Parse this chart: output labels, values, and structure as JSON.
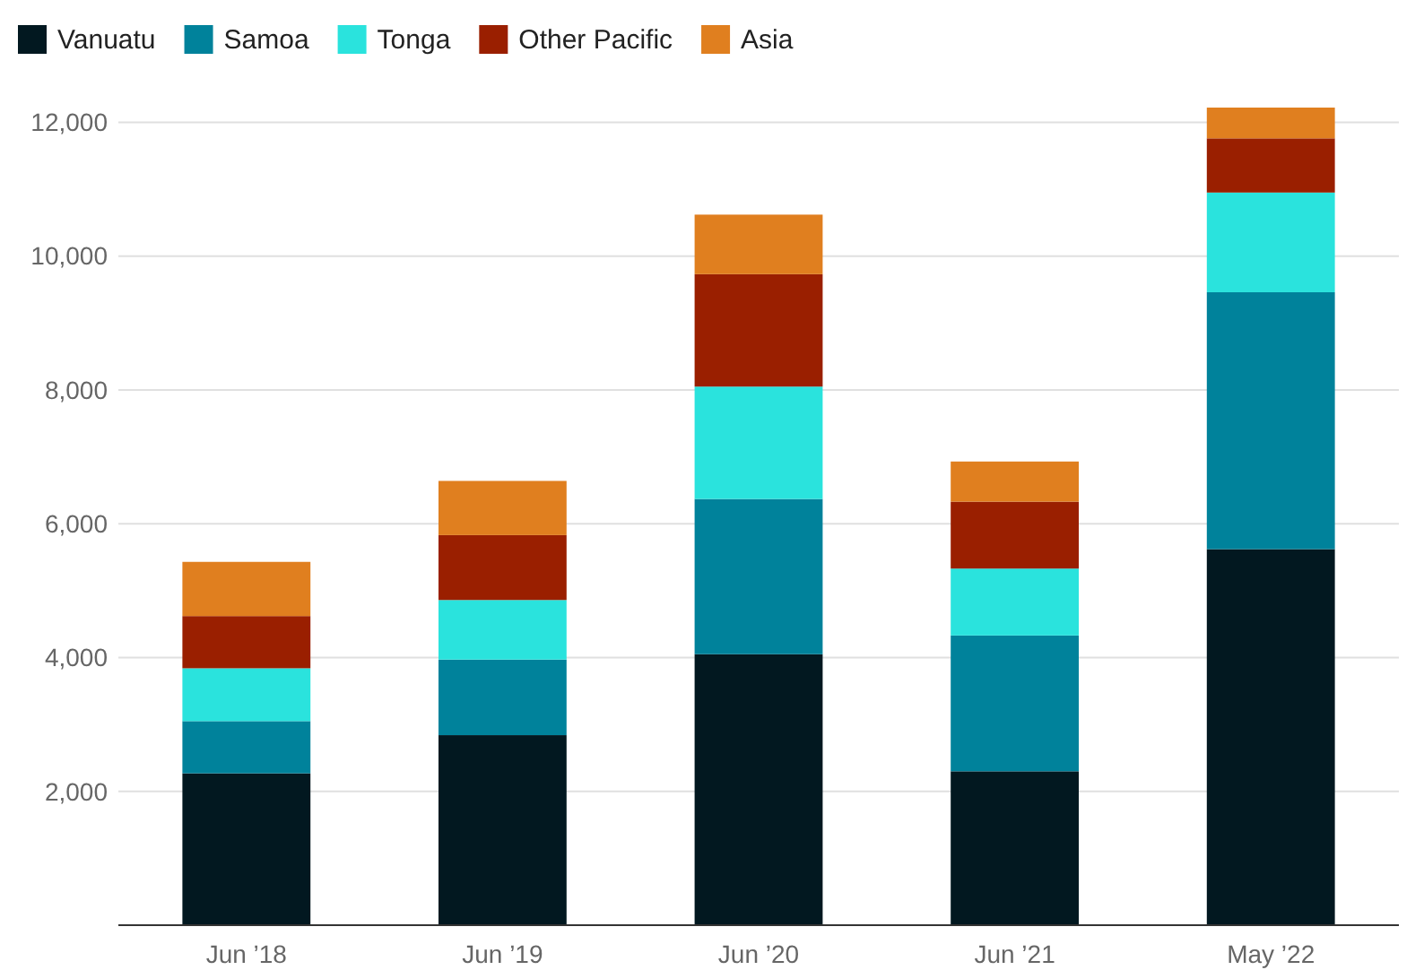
{
  "chart_data": {
    "type": "bar",
    "stacked": true,
    "categories": [
      "Jun ’18",
      "Jun ’19",
      "Jun ’20",
      "Jun ’21",
      "May ’22"
    ],
    "series": [
      {
        "name": "Vanuatu",
        "color": "#021820",
        "values": [
          2270,
          2840,
          4050,
          2300,
          5620
        ]
      },
      {
        "name": "Samoa",
        "color": "#00829b",
        "values": [
          780,
          1130,
          2320,
          2030,
          3840
        ]
      },
      {
        "name": "Tonga",
        "color": "#2ae3dd",
        "values": [
          790,
          890,
          1680,
          1000,
          1490
        ]
      },
      {
        "name": "Other Pacific",
        "color": "#9a1f00",
        "values": [
          780,
          970,
          1680,
          1000,
          810
        ]
      },
      {
        "name": "Asia",
        "color": "#e07f1f",
        "values": [
          810,
          810,
          890,
          600,
          460
        ]
      }
    ],
    "ylim": [
      0,
      12220
    ],
    "yticks": [
      {
        "value": 2000,
        "label": "2,000"
      },
      {
        "value": 4000,
        "label": "4,000"
      },
      {
        "value": 6000,
        "label": "6,000"
      },
      {
        "value": 8000,
        "label": "8,000"
      },
      {
        "value": 10000,
        "label": "10,000"
      },
      {
        "value": 12000,
        "label": "12,000"
      }
    ],
    "grid": "y",
    "legend": "top left"
  }
}
